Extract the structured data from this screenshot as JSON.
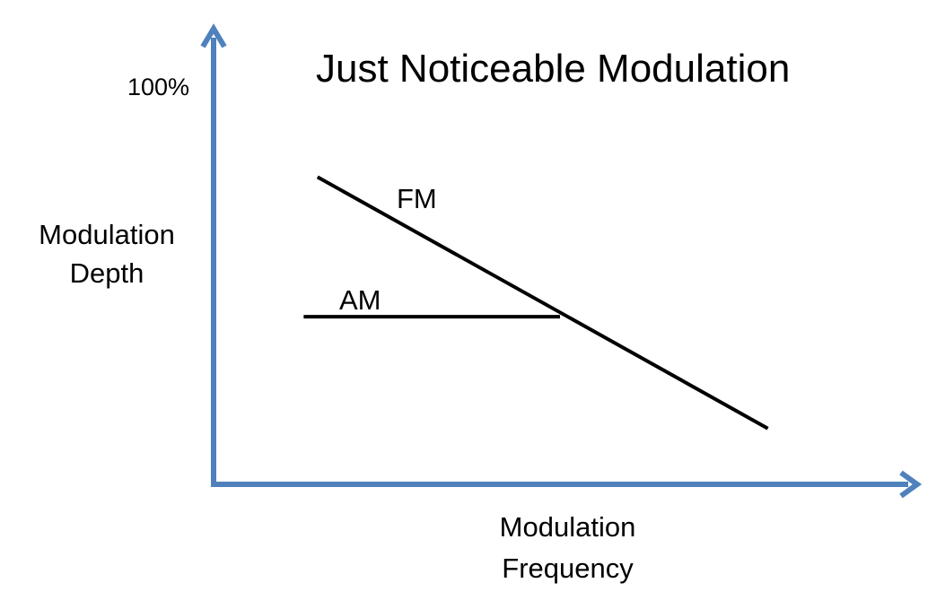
{
  "chart_data": {
    "type": "line",
    "title": "Just Noticeable Modulation",
    "xlabel_lines": [
      "Modulation",
      "Frequency"
    ],
    "ylabel_lines": [
      "Modulation",
      "Depth"
    ],
    "y_tick_top": "100%",
    "ylim": [
      0,
      100
    ],
    "xlim": [
      0,
      100
    ],
    "grid": false,
    "axis_color": "#4F81BD",
    "line_color": "#000000",
    "series": [
      {
        "name": "FM",
        "x": [
          15,
          80
        ],
        "y": [
          77,
          14
        ]
      },
      {
        "name": "AM",
        "x": [
          13,
          50
        ],
        "y": [
          42,
          42
        ]
      }
    ]
  }
}
